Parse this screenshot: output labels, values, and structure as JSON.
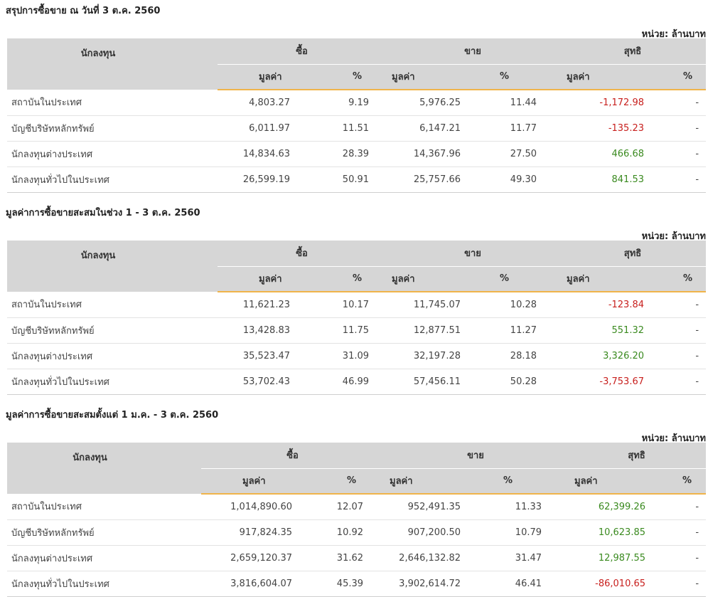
{
  "unit_label": "หน่วย: ล้านบาท",
  "headers": {
    "investor": "นักลงทุน",
    "buy": "ซื้อ",
    "sell": "ขาย",
    "net": "สุทธิ",
    "value": "มูลค่า",
    "percent": "%"
  },
  "colors": {
    "negative": "#c8201e",
    "positive": "#3a8a1f",
    "accent": "#f0b44a",
    "header_bg": "#d6d6d6"
  },
  "sections": [
    {
      "title": "สรุปการซื้อขาย ณ วันที่ 3 ต.ค. 2560",
      "rows": [
        {
          "name": "สถาบันในประเทศ",
          "buy_value": "4,803.27",
          "buy_pct": "9.19",
          "sell_value": "5,976.25",
          "sell_pct": "11.44",
          "net_value": "-1,172.98",
          "net_pct": "-",
          "net_sign": "neg"
        },
        {
          "name": "บัญชีบริษัทหลักทรัพย์",
          "buy_value": "6,011.97",
          "buy_pct": "11.51",
          "sell_value": "6,147.21",
          "sell_pct": "11.77",
          "net_value": "-135.23",
          "net_pct": "-",
          "net_sign": "neg"
        },
        {
          "name": "นักลงทุนต่างประเทศ",
          "buy_value": "14,834.63",
          "buy_pct": "28.39",
          "sell_value": "14,367.96",
          "sell_pct": "27.50",
          "net_value": "466.68",
          "net_pct": "-",
          "net_sign": "pos"
        },
        {
          "name": "นักลงทุนทั่วไปในประเทศ",
          "buy_value": "26,599.19",
          "buy_pct": "50.91",
          "sell_value": "25,757.66",
          "sell_pct": "49.30",
          "net_value": "841.53",
          "net_pct": "-",
          "net_sign": "pos"
        }
      ]
    },
    {
      "title": "มูลค่าการซื้อขายสะสมในช่วง 1 - 3 ต.ค. 2560",
      "rows": [
        {
          "name": "สถาบันในประเทศ",
          "buy_value": "11,621.23",
          "buy_pct": "10.17",
          "sell_value": "11,745.07",
          "sell_pct": "10.28",
          "net_value": "-123.84",
          "net_pct": "-",
          "net_sign": "neg"
        },
        {
          "name": "บัญชีบริษัทหลักทรัพย์",
          "buy_value": "13,428.83",
          "buy_pct": "11.75",
          "sell_value": "12,877.51",
          "sell_pct": "11.27",
          "net_value": "551.32",
          "net_pct": "-",
          "net_sign": "pos"
        },
        {
          "name": "นักลงทุนต่างประเทศ",
          "buy_value": "35,523.47",
          "buy_pct": "31.09",
          "sell_value": "32,197.28",
          "sell_pct": "28.18",
          "net_value": "3,326.20",
          "net_pct": "-",
          "net_sign": "pos"
        },
        {
          "name": "นักลงทุนทั่วไปในประเทศ",
          "buy_value": "53,702.43",
          "buy_pct": "46.99",
          "sell_value": "57,456.11",
          "sell_pct": "50.28",
          "net_value": "-3,753.67",
          "net_pct": "-",
          "net_sign": "neg"
        }
      ]
    },
    {
      "title": "มูลค่าการซื้อขายสะสมตั้งแต่ 1 ม.ค. - 3 ต.ค. 2560",
      "rows": [
        {
          "name": "สถาบันในประเทศ",
          "buy_value": "1,014,890.60",
          "buy_pct": "12.07",
          "sell_value": "952,491.35",
          "sell_pct": "11.33",
          "net_value": "62,399.26",
          "net_pct": "-",
          "net_sign": "pos"
        },
        {
          "name": "บัญชีบริษัทหลักทรัพย์",
          "buy_value": "917,824.35",
          "buy_pct": "10.92",
          "sell_value": "907,200.50",
          "sell_pct": "10.79",
          "net_value": "10,623.85",
          "net_pct": "-",
          "net_sign": "pos"
        },
        {
          "name": "นักลงทุนต่างประเทศ",
          "buy_value": "2,659,120.37",
          "buy_pct": "31.62",
          "sell_value": "2,646,132.82",
          "sell_pct": "31.47",
          "net_value": "12,987.55",
          "net_pct": "-",
          "net_sign": "pos"
        },
        {
          "name": "นักลงทุนทั่วไปในประเทศ",
          "buy_value": "3,816,604.07",
          "buy_pct": "45.39",
          "sell_value": "3,902,614.72",
          "sell_pct": "46.41",
          "net_value": "-86,010.65",
          "net_pct": "-",
          "net_sign": "neg"
        }
      ]
    }
  ]
}
